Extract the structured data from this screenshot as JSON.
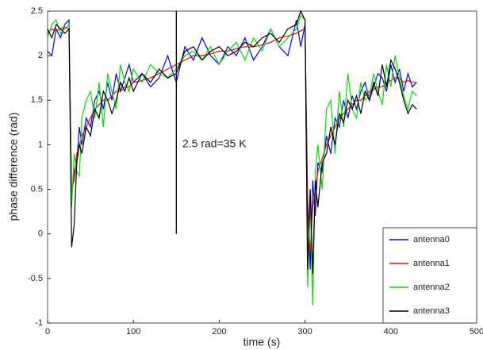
{
  "chart_data": {
    "type": "line",
    "x_label": "time (s)",
    "y_label": "phase difference (rad)",
    "annotation": "2.5 rad=35 K",
    "annotation_line": {
      "x": 150,
      "y": [
        0,
        2.5
      ],
      "color": "#000000"
    },
    "xlim": [
      0,
      500
    ],
    "xticks": [
      0,
      100,
      200,
      300,
      400,
      500
    ],
    "ylim": [
      -1,
      2.5
    ],
    "yticks": [
      -1,
      -0.5,
      0,
      0.5,
      1,
      1.5,
      2,
      2.5
    ],
    "legend": "lower right",
    "x": [
      0,
      5,
      10,
      15,
      20,
      25,
      28,
      31,
      34,
      37,
      40,
      45,
      50,
      55,
      60,
      65,
      70,
      75,
      80,
      85,
      90,
      95,
      100,
      110,
      120,
      130,
      140,
      150,
      160,
      170,
      180,
      190,
      200,
      210,
      220,
      230,
      240,
      250,
      260,
      270,
      280,
      290,
      295,
      300,
      303,
      306,
      309,
      312,
      315,
      320,
      325,
      330,
      335,
      340,
      345,
      350,
      355,
      360,
      365,
      370,
      375,
      380,
      385,
      390,
      395,
      400,
      405,
      410,
      415,
      420,
      425,
      430
    ],
    "series": [
      {
        "name": "antenna0",
        "color": "#0000ff",
        "values": [
          2.05,
          2.0,
          2.3,
          2.2,
          2.35,
          2.4,
          0.4,
          0.7,
          0.8,
          1.2,
          1.0,
          1.3,
          1.2,
          1.5,
          1.6,
          1.4,
          1.7,
          1.5,
          1.8,
          1.6,
          1.75,
          1.9,
          1.7,
          1.8,
          1.65,
          1.75,
          2.0,
          1.7,
          2.1,
          1.95,
          2.2,
          2.0,
          1.9,
          2.1,
          2.0,
          2.2,
          1.95,
          2.1,
          2.3,
          2.1,
          2.0,
          2.4,
          2.1,
          2.35,
          0.4,
          -0.4,
          0.6,
          0.2,
          0.8,
          0.7,
          1.1,
          0.9,
          1.3,
          1.2,
          1.5,
          1.3,
          1.55,
          1.4,
          1.6,
          1.7,
          1.5,
          1.65,
          1.8,
          1.75,
          1.6,
          1.9,
          1.7,
          1.85,
          1.6,
          1.8,
          1.65,
          1.7
        ]
      },
      {
        "name": "antenna1",
        "color": "#ff0000",
        "values": [
          2.25,
          2.3,
          2.28,
          2.3,
          2.32,
          2.3,
          0.5,
          0.6,
          0.9,
          1.0,
          1.1,
          1.2,
          1.3,
          1.4,
          1.45,
          1.5,
          1.5,
          1.55,
          1.6,
          1.6,
          1.65,
          1.65,
          1.7,
          1.72,
          1.75,
          1.8,
          1.85,
          1.9,
          1.95,
          2.0,
          2.0,
          2.02,
          2.05,
          2.05,
          2.08,
          2.1,
          2.1,
          2.12,
          2.15,
          2.2,
          2.22,
          2.25,
          2.28,
          2.3,
          0.2,
          -0.2,
          0.3,
          0.5,
          0.7,
          0.85,
          1.0,
          1.1,
          1.2,
          1.3,
          1.35,
          1.4,
          1.45,
          1.5,
          1.5,
          1.55,
          1.6,
          1.62,
          1.65,
          1.65,
          1.7,
          1.72,
          1.75,
          1.75,
          1.7,
          1.72,
          1.7,
          1.7
        ]
      },
      {
        "name": "antenna2",
        "color": "#00e000",
        "values": [
          2.2,
          2.35,
          2.4,
          2.25,
          2.3,
          2.35,
          0.3,
          0.9,
          0.7,
          0.65,
          1.3,
          1.5,
          1.6,
          1.3,
          1.7,
          1.2,
          1.8,
          1.6,
          1.4,
          1.9,
          1.7,
          1.6,
          1.85,
          1.7,
          1.9,
          1.8,
          1.75,
          1.85,
          2.0,
          2.05,
          1.95,
          2.1,
          1.9,
          2.05,
          2.15,
          1.95,
          2.2,
          2.05,
          2.3,
          2.1,
          2.2,
          2.3,
          2.45,
          2.4,
          -0.6,
          0.4,
          -0.8,
          0.7,
          1.0,
          0.5,
          1.4,
          1.5,
          0.9,
          1.6,
          1.2,
          1.8,
          1.4,
          1.3,
          1.7,
          1.5,
          1.55,
          1.8,
          1.6,
          1.45,
          1.9,
          1.65,
          2.0,
          1.75,
          1.55,
          1.4,
          1.6,
          1.55
        ]
      },
      {
        "name": "antenna3",
        "color": "#000000",
        "values": [
          2.3,
          2.2,
          2.35,
          2.3,
          2.25,
          2.3,
          -0.15,
          0.1,
          0.8,
          1.0,
          0.9,
          1.2,
          1.1,
          1.4,
          1.3,
          1.6,
          1.5,
          1.35,
          1.5,
          1.7,
          1.6,
          1.75,
          1.6,
          1.8,
          1.7,
          1.85,
          1.75,
          1.8,
          2.05,
          2.1,
          1.95,
          2.05,
          2.1,
          2.0,
          2.05,
          2.15,
          2.1,
          2.2,
          2.25,
          2.15,
          2.3,
          2.35,
          2.5,
          2.4,
          -0.4,
          0.5,
          -0.45,
          0.6,
          0.3,
          0.8,
          0.9,
          1.2,
          1.0,
          1.35,
          1.25,
          1.5,
          1.4,
          1.55,
          1.35,
          1.6,
          1.5,
          1.7,
          1.55,
          1.9,
          1.65,
          1.95,
          1.85,
          1.7,
          1.5,
          1.35,
          1.45,
          1.4
        ]
      }
    ]
  }
}
